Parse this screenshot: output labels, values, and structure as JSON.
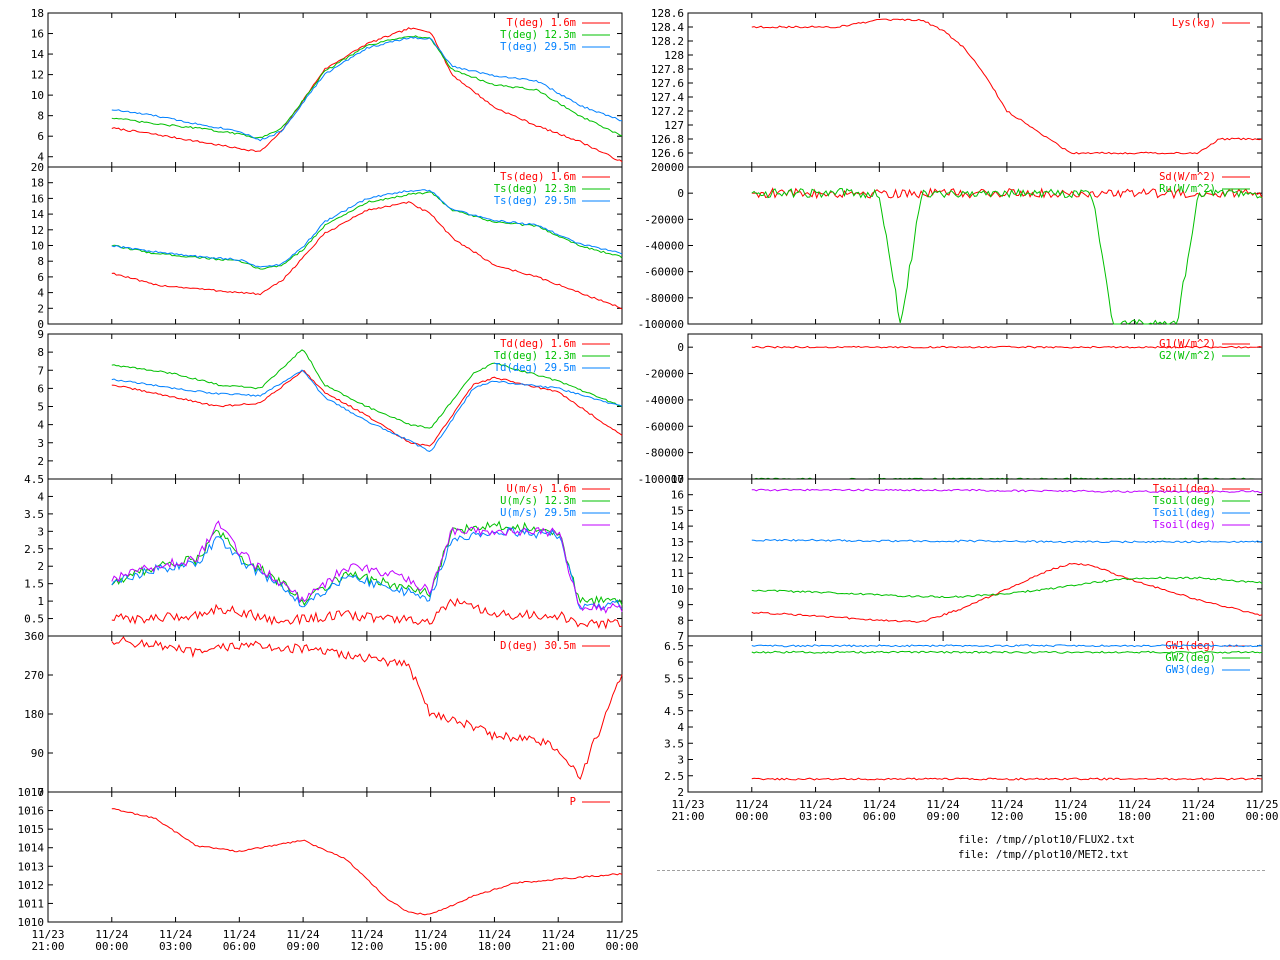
{
  "colors": {
    "red": "#ff0000",
    "green": "#00c000",
    "blue": "#0080ff",
    "purple": "#c000ff"
  },
  "time_axis": {
    "ticks": [
      {
        "date": "11/23",
        "time": "21:00"
      },
      {
        "date": "11/24",
        "time": "00:00"
      },
      {
        "date": "11/24",
        "time": "03:00"
      },
      {
        "date": "11/24",
        "time": "06:00"
      },
      {
        "date": "11/24",
        "time": "09:00"
      },
      {
        "date": "11/24",
        "time": "12:00"
      },
      {
        "date": "11/24",
        "time": "15:00"
      },
      {
        "date": "11/24",
        "time": "18:00"
      },
      {
        "date": "11/24",
        "time": "21:00"
      },
      {
        "date": "11/25",
        "time": "00:00"
      }
    ]
  },
  "files": [
    "file: /tmp//plot10/FLUX2.txt",
    "file: /tmp//plot10/MET2.txt"
  ],
  "chart_data": [
    {
      "id": "air-temp",
      "type": "line",
      "column": "left",
      "xlim": [
        "11/23 21:00",
        "11/25 00:00"
      ],
      "ylim": [
        3,
        18
      ],
      "yticks": [
        4,
        6,
        8,
        10,
        12,
        14,
        16,
        18
      ],
      "ytick_labels": [
        "4",
        "6",
        "8",
        "10",
        "12",
        "14",
        "16",
        "18"
      ],
      "legend_placement": "top-right",
      "x": [
        "11/24 00:00",
        "11/24 02:00",
        "11/24 04:00",
        "11/24 06:00",
        "11/24 07:00",
        "11/24 08:00",
        "11/24 09:00",
        "11/24 10:00",
        "11/24 12:00",
        "11/24 14:00",
        "11/24 15:00",
        "11/24 16:00",
        "11/24 18:00",
        "11/24 20:00",
        "11/24 22:00",
        "11/25 00:00"
      ],
      "series": [
        {
          "name": "T(deg)  1.6m",
          "color": "red",
          "values": [
            6.8,
            6.2,
            5.5,
            4.8,
            4.5,
            6.5,
            9.5,
            12.5,
            15.0,
            16.5,
            16.2,
            12.0,
            8.8,
            7.0,
            5.5,
            3.5
          ]
        },
        {
          "name": "T(deg) 12.3m",
          "color": "green",
          "values": [
            7.8,
            7.2,
            6.8,
            6.2,
            5.8,
            6.8,
            9.5,
            12.3,
            14.8,
            15.8,
            15.5,
            12.5,
            11.0,
            10.5,
            8.0,
            6.0
          ]
        },
        {
          "name": "T(deg) 29.5m",
          "color": "blue",
          "values": [
            8.6,
            8.0,
            7.2,
            6.5,
            5.6,
            6.5,
            9.3,
            12.0,
            14.6,
            15.6,
            15.5,
            12.8,
            11.9,
            11.4,
            9.0,
            7.5
          ]
        }
      ]
    },
    {
      "id": "sonic-temp",
      "type": "line",
      "column": "left",
      "xlim": [
        "11/23 21:00",
        "11/25 00:00"
      ],
      "ylim": [
        0,
        20
      ],
      "yticks": [
        0,
        2,
        4,
        6,
        8,
        10,
        12,
        14,
        16,
        18,
        20
      ],
      "ytick_labels": [
        "0",
        "2",
        "4",
        "6",
        "8",
        "10",
        "12",
        "14",
        "16",
        "18",
        "20"
      ],
      "legend_placement": "top-right",
      "x": [
        "11/24 00:00",
        "11/24 02:00",
        "11/24 04:00",
        "11/24 06:00",
        "11/24 07:00",
        "11/24 08:00",
        "11/24 09:00",
        "11/24 10:00",
        "11/24 12:00",
        "11/24 14:00",
        "11/24 15:00",
        "11/24 16:00",
        "11/24 18:00",
        "11/24 20:00",
        "11/24 22:00",
        "11/25 00:00"
      ],
      "series": [
        {
          "name": "Ts(deg)  1.6m",
          "color": "red",
          "values": [
            6.5,
            5.0,
            4.5,
            4.0,
            3.8,
            5.5,
            8.5,
            11.5,
            14.5,
            15.5,
            14.0,
            11.0,
            7.5,
            6.0,
            4.0,
            2.0
          ]
        },
        {
          "name": "Ts(deg) 12.3m",
          "color": "green",
          "values": [
            10.0,
            9.0,
            8.5,
            8.0,
            7.0,
            7.5,
            9.5,
            12.5,
            15.5,
            16.5,
            16.8,
            14.5,
            13.0,
            12.5,
            10.0,
            8.5
          ]
        },
        {
          "name": "Ts(deg) 29.5m",
          "color": "blue",
          "values": [
            10.0,
            9.2,
            8.6,
            8.2,
            7.2,
            7.6,
            9.8,
            13.0,
            16.0,
            17.0,
            17.0,
            14.6,
            13.2,
            12.6,
            10.2,
            9.0
          ]
        }
      ]
    },
    {
      "id": "dew-point",
      "type": "line",
      "column": "left",
      "xlim": [
        "11/23 21:00",
        "11/25 00:00"
      ],
      "ylim": [
        1,
        9
      ],
      "yticks": [
        2,
        3,
        4,
        5,
        6,
        7,
        8,
        9
      ],
      "ytick_labels": [
        "2",
        "3",
        "4",
        "5",
        "6",
        "7",
        "8",
        "9"
      ],
      "legend_placement": "top-right",
      "x": [
        "11/24 00:00",
        "11/24 03:00",
        "11/24 05:00",
        "11/24 07:00",
        "11/24 09:00",
        "11/24 10:00",
        "11/24 12:00",
        "11/24 14:00",
        "11/24 15:00",
        "11/24 17:00",
        "11/24 18:00",
        "11/24 21:00",
        "11/25 00:00"
      ],
      "series": [
        {
          "name": "Td(deg)  1.6m",
          "color": "red",
          "values": [
            6.2,
            5.5,
            5.0,
            5.2,
            7.0,
            5.8,
            4.5,
            3.0,
            2.8,
            6.2,
            6.6,
            5.8,
            3.4
          ]
        },
        {
          "name": "Td(deg) 12.3m",
          "color": "green",
          "values": [
            7.3,
            6.8,
            6.2,
            6.0,
            8.2,
            6.2,
            5.0,
            4.0,
            3.8,
            6.8,
            7.4,
            6.4,
            5.0
          ]
        },
        {
          "name": "Td(deg) 29.5m",
          "color": "blue",
          "values": [
            6.5,
            6.0,
            5.7,
            5.6,
            7.0,
            5.5,
            4.2,
            3.1,
            2.5,
            6.0,
            6.4,
            6.0,
            5.0
          ]
        }
      ]
    },
    {
      "id": "wind-speed",
      "type": "line",
      "column": "left",
      "xlim": [
        "11/23 21:00",
        "11/25 00:00"
      ],
      "ylim": [
        0,
        4.5
      ],
      "yticks": [
        0.5,
        1,
        1.5,
        2,
        2.5,
        3,
        3.5,
        4,
        4.5
      ],
      "ytick_labels": [
        "0.5",
        "1",
        "1.5",
        "2",
        "2.5",
        "3",
        "3.5",
        "4",
        "4.5"
      ],
      "legend_placement": "top-right",
      "x": [
        "11/24 00:00",
        "11/24 02:00",
        "11/24 04:00",
        "11/24 05:00",
        "11/24 06:00",
        "11/24 08:00",
        "11/24 09:00",
        "11/24 11:00",
        "11/24 13:00",
        "11/24 15:00",
        "11/24 16:00",
        "11/24 18:00",
        "11/24 21:00",
        "11/24 22:00",
        "11/25 00:00"
      ],
      "series": [
        {
          "name": "U(m/s)  1.6m",
          "color": "red",
          "values": [
            0.5,
            0.5,
            0.6,
            0.8,
            0.7,
            0.4,
            0.5,
            0.6,
            0.5,
            0.4,
            1.0,
            0.6,
            0.6,
            0.3,
            0.4
          ]
        },
        {
          "name": "U(m/s) 12.3m",
          "color": "green",
          "values": [
            1.5,
            2.0,
            2.2,
            3.0,
            2.3,
            1.5,
            1.0,
            1.8,
            1.5,
            1.2,
            3.0,
            3.2,
            3.0,
            1.0,
            1.0
          ]
        },
        {
          "name": "U(m/s) 29.5m",
          "color": "blue",
          "values": [
            1.5,
            1.9,
            2.1,
            2.8,
            2.2,
            1.4,
            0.9,
            1.7,
            1.4,
            1.1,
            2.8,
            3.0,
            2.9,
            0.9,
            0.9
          ]
        },
        {
          "name": "",
          "color": "purple",
          "values": [
            1.6,
            2.0,
            2.2,
            3.2,
            2.4,
            1.5,
            1.0,
            2.0,
            1.8,
            1.3,
            3.0,
            3.0,
            3.0,
            0.8,
            0.8
          ]
        }
      ]
    },
    {
      "id": "wind-direction",
      "type": "line",
      "column": "left",
      "xlim": [
        "11/23 21:00",
        "11/25 00:00"
      ],
      "ylim": [
        0,
        360
      ],
      "yticks": [
        0,
        90,
        180,
        270,
        360
      ],
      "ytick_labels": [
        "0",
        "90",
        "180",
        "270",
        "360"
      ],
      "legend_placement": "top-right",
      "x": [
        "11/24 00:00",
        "11/24 02:00",
        "11/24 04:00",
        "11/24 06:00",
        "11/24 09:00",
        "11/24 12:00",
        "11/24 14:00",
        "11/24 15:00",
        "11/24 16:00",
        "11/24 18:00",
        "11/24 20:00",
        "11/24 21:00",
        "11/24 22:00",
        "11/25 00:00"
      ],
      "series": [
        {
          "name": "D(deg)  30.5m",
          "color": "red",
          "values": [
            350,
            340,
            320,
            340,
            330,
            310,
            290,
            180,
            170,
            130,
            120,
            100,
            30,
            270
          ]
        }
      ]
    },
    {
      "id": "pressure",
      "type": "line",
      "column": "left",
      "xlim": [
        "11/23 21:00",
        "11/25 00:00"
      ],
      "ylim": [
        1010,
        1017
      ],
      "yticks": [
        1010,
        1011,
        1012,
        1013,
        1014,
        1015,
        1016,
        1017
      ],
      "ytick_labels": [
        "1010",
        "1011",
        "1012",
        "1013",
        "1014",
        "1015",
        "1016",
        "1017"
      ],
      "legend_placement": "top-right",
      "x": [
        "11/24 00:00",
        "11/24 02:00",
        "11/24 04:00",
        "11/24 06:00",
        "11/24 08:00",
        "11/24 09:00",
        "11/24 11:00",
        "11/24 13:00",
        "11/24 14:00",
        "11/24 15:00",
        "11/24 17:00",
        "11/24 19:00",
        "11/24 21:00",
        "11/24 23:00",
        "11/25 00:00"
      ],
      "series": [
        {
          "name": "P",
          "color": "red",
          "values": [
            1016.1,
            1015.6,
            1014.1,
            1013.8,
            1014.2,
            1014.4,
            1013.4,
            1011.2,
            1010.5,
            1010.4,
            1011.4,
            1012.1,
            1012.3,
            1012.5,
            1012.6
          ]
        }
      ]
    },
    {
      "id": "lysimeter",
      "type": "line",
      "column": "right",
      "xlim": [
        "11/23 21:00",
        "11/25 00:00"
      ],
      "ylim": [
        126.4,
        128.6
      ],
      "yticks": [
        126.6,
        126.8,
        127,
        127.2,
        127.4,
        127.6,
        127.8,
        128,
        128.2,
        128.4,
        128.6
      ],
      "ytick_labels": [
        "126.6",
        "126.8",
        "127",
        "127.2",
        "127.4",
        "127.6",
        "127.8",
        "128",
        "128.2",
        "128.4",
        "128.6"
      ],
      "legend_placement": "top-right",
      "x": [
        "11/24 00:00",
        "11/24 04:00",
        "11/24 05:00",
        "11/24 06:00",
        "11/24 08:00",
        "11/24 09:00",
        "11/24 10:00",
        "11/24 11:00",
        "11/24 12:00",
        "11/24 13:00",
        "11/24 14:00",
        "11/24 15:00",
        "11/24 18:00",
        "11/24 21:00",
        "11/24 22:00",
        "11/25 00:00"
      ],
      "series": [
        {
          "name": "Lys(kg)",
          "color": "red",
          "values": [
            128.4,
            128.4,
            128.45,
            128.5,
            128.5,
            128.35,
            128.1,
            127.7,
            127.2,
            127.0,
            126.8,
            126.6,
            126.6,
            126.6,
            126.8,
            126.8
          ]
        }
      ]
    },
    {
      "id": "radiation",
      "type": "line",
      "column": "right",
      "xlim": [
        "11/23 21:00",
        "11/25 00:00"
      ],
      "ylim": [
        -100000,
        20000
      ],
      "yticks": [
        -100000,
        -80000,
        -60000,
        -40000,
        -20000,
        0,
        20000
      ],
      "ytick_labels": [
        "-100000",
        "-80000",
        "-60000",
        "-40000",
        "-20000",
        "0",
        "20000"
      ],
      "legend_placement": "top-right",
      "x": [
        "11/24 00:00",
        "11/24 06:00",
        "11/24 07:00",
        "11/24 08:00",
        "11/24 12:00",
        "11/24 16:00",
        "11/24 17:00",
        "11/24 20:00",
        "11/24 21:00",
        "11/25 00:00"
      ],
      "series": [
        {
          "name": "Sd(W/m^2)",
          "color": "red",
          "values": [
            0,
            0,
            0,
            0,
            0,
            0,
            0,
            0,
            0,
            0
          ]
        },
        {
          "name": "Ru(W/m^2)",
          "color": "green",
          "values": [
            0,
            0,
            -100000,
            0,
            0,
            0,
            -100000,
            -100000,
            0,
            0
          ]
        }
      ]
    },
    {
      "id": "ground-flux",
      "type": "line",
      "column": "right",
      "xlim": [
        "11/23 21:00",
        "11/25 00:00"
      ],
      "ylim": [
        -100000,
        10000
      ],
      "yticks": [
        -100000,
        -80000,
        -60000,
        -40000,
        -20000,
        0
      ],
      "ytick_labels": [
        "-100000",
        "-80000",
        "-60000",
        "-40000",
        "-20000",
        "0"
      ],
      "legend_placement": "top-right",
      "x": [
        "11/24 00:00",
        "11/25 00:00"
      ],
      "series": [
        {
          "name": "G1(W/m^2)",
          "color": "red",
          "values": [
            0,
            0
          ]
        },
        {
          "name": "G2(W/m^2)",
          "color": "green",
          "values": [
            -100000,
            -100000
          ]
        }
      ]
    },
    {
      "id": "soil-temp",
      "type": "line",
      "column": "right",
      "xlim": [
        "11/23 21:00",
        "11/25 00:00"
      ],
      "ylim": [
        7,
        17
      ],
      "yticks": [
        7,
        8,
        9,
        10,
        11,
        12,
        13,
        14,
        15,
        16,
        17
      ],
      "ytick_labels": [
        "7",
        "8",
        "9",
        "10",
        "11",
        "12",
        "13",
        "14",
        "15",
        "16",
        "17"
      ],
      "legend_placement": "top-right",
      "x": [
        "11/24 00:00",
        "11/24 03:00",
        "11/24 06:00",
        "11/24 08:00",
        "11/24 10:00",
        "11/24 12:00",
        "11/24 14:00",
        "11/24 15:00",
        "11/24 16:00",
        "11/24 18:00",
        "11/24 21:00",
        "11/25 00:00"
      ],
      "series": [
        {
          "name": "Tsoil(deg)",
          "color": "red",
          "values": [
            8.5,
            8.3,
            8.0,
            7.9,
            8.8,
            10.0,
            11.2,
            11.6,
            11.5,
            10.5,
            9.3,
            8.3
          ]
        },
        {
          "name": "Tsoil(deg)",
          "color": "green",
          "values": [
            9.9,
            9.8,
            9.6,
            9.5,
            9.5,
            9.7,
            10.0,
            10.2,
            10.4,
            10.7,
            10.7,
            10.4
          ]
        },
        {
          "name": "Tsoil(deg)",
          "color": "blue",
          "values": [
            13.1,
            13.1,
            13.05,
            13.05,
            13.05,
            13.05,
            13.0,
            13.0,
            13.0,
            13.0,
            13.0,
            13.0
          ]
        },
        {
          "name": "Tsoil(deg)",
          "color": "purple",
          "values": [
            16.3,
            16.3,
            16.3,
            16.3,
            16.3,
            16.25,
            16.25,
            16.25,
            16.2,
            16.2,
            16.2,
            16.2
          ]
        }
      ]
    },
    {
      "id": "groundwater",
      "type": "line",
      "column": "right",
      "xlim": [
        "11/23 21:00",
        "11/25 00:00"
      ],
      "ylim": [
        2,
        6.8
      ],
      "yticks": [
        2,
        2.5,
        3,
        3.5,
        4,
        4.5,
        5,
        5.5,
        6,
        6.5
      ],
      "ytick_labels": [
        "2",
        "2.5",
        "3",
        "3.5",
        "4",
        "4.5",
        "5",
        "5.5",
        "6",
        "6.5"
      ],
      "legend_placement": "top-right",
      "x": [
        "11/24 00:00",
        "11/25 00:00"
      ],
      "series": [
        {
          "name": "GW1(deg)",
          "color": "red",
          "values": [
            2.4,
            2.4
          ]
        },
        {
          "name": "GW2(deg)",
          "color": "green",
          "values": [
            6.3,
            6.3
          ]
        },
        {
          "name": "GW3(deg)",
          "color": "blue",
          "values": [
            6.5,
            6.5
          ]
        }
      ]
    }
  ]
}
